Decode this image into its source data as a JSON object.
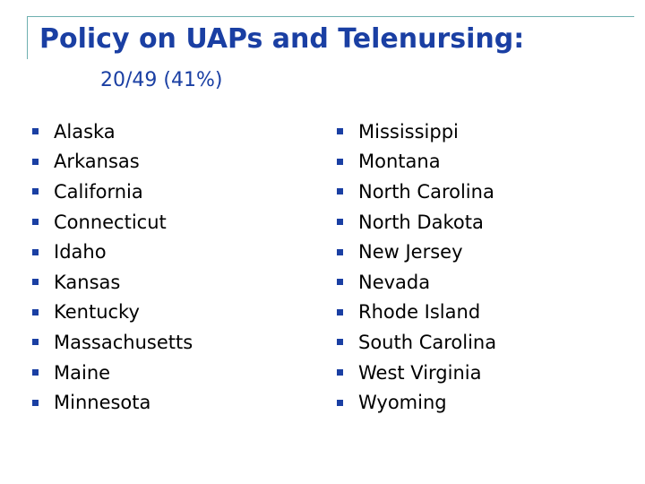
{
  "slide": {
    "title": "Policy on UAPs and Telenursing:",
    "subtitle": "20/49 (41%)",
    "colors": {
      "heading": "#1a3fa3",
      "bullet": "#1a3fa3",
      "frame_line": "#6fb0b0",
      "text": "#000000"
    },
    "bullet_icon": "square-bullet-icon",
    "left_column": [
      "Alaska",
      "Arkansas",
      "California",
      "Connecticut",
      "Idaho",
      "Kansas",
      "Kentucky",
      "Massachusetts",
      "Maine",
      "Minnesota"
    ],
    "right_column": [
      "Mississippi",
      "Montana",
      "North Carolina",
      "North Dakota",
      "New Jersey",
      "Nevada",
      "Rhode Island",
      "South Carolina",
      "West Virginia",
      "Wyoming"
    ]
  }
}
